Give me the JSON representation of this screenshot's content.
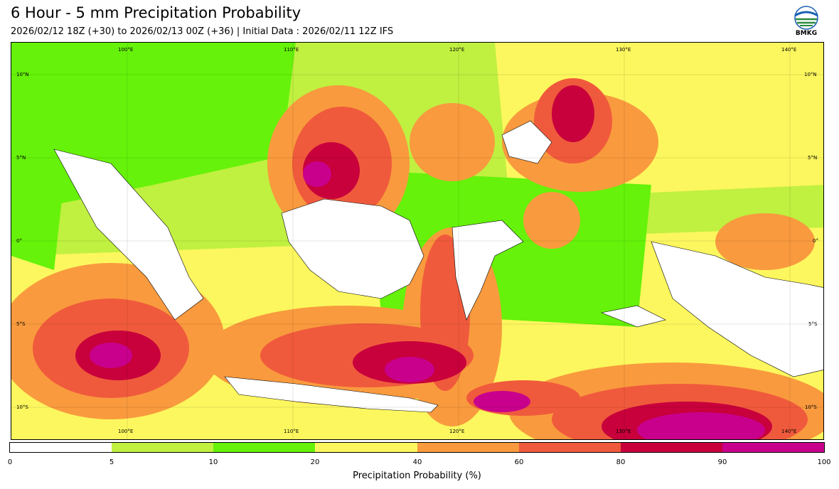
{
  "header": {
    "title": "6 Hour - 5 mm Precipitation Probability",
    "subtitle": "2026/02/12 18Z (+30) to 2026/02/13 00Z (+36) | Initial Data : 2026/02/11 12Z IFS",
    "logo_text": "BMKG"
  },
  "map": {
    "lon_labels": [
      "100°E",
      "110°E",
      "120°E",
      "130°E",
      "140°E"
    ],
    "lat_labels": [
      "10°N",
      "5°N",
      "0°",
      "5°S",
      "10°S"
    ]
  },
  "colorbar": {
    "title": "Precipitation Probability (%)",
    "ticks": [
      "0",
      "5",
      "10",
      "20",
      "40",
      "60",
      "80",
      "90",
      "100"
    ],
    "colors": [
      "#ffffff",
      "#c0f040",
      "#66f20a",
      "#fcf75e",
      "#f99a3e",
      "#f05a3c",
      "#c8003c",
      "#c8008c"
    ]
  }
}
